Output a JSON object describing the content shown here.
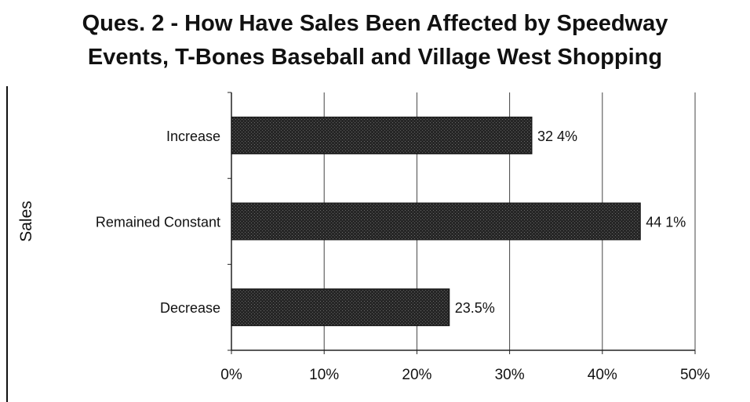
{
  "chart_data": {
    "type": "bar",
    "orientation": "horizontal",
    "title_lines": [
      "Ques. 2 - How Have Sales Been Affected by Speedway",
      "Events, T-Bones Baseball and Village West Shopping"
    ],
    "ylabel": "Sales",
    "xlabel": "",
    "categories": [
      "Increase",
      "Remained Constant",
      "Decrease"
    ],
    "values": [
      32.4,
      44.1,
      23.5
    ],
    "data_labels": [
      "32 4%",
      "44 1%",
      "23.5%"
    ],
    "xlim": [
      0,
      50
    ],
    "x_ticks": [
      0,
      10,
      20,
      30,
      40,
      50
    ],
    "x_tick_labels": [
      "0%",
      "10%",
      "20%",
      "30%",
      "40%",
      "50%"
    ],
    "grid": "vertical",
    "legend": "none",
    "bar_color": "#2b2b2b"
  }
}
